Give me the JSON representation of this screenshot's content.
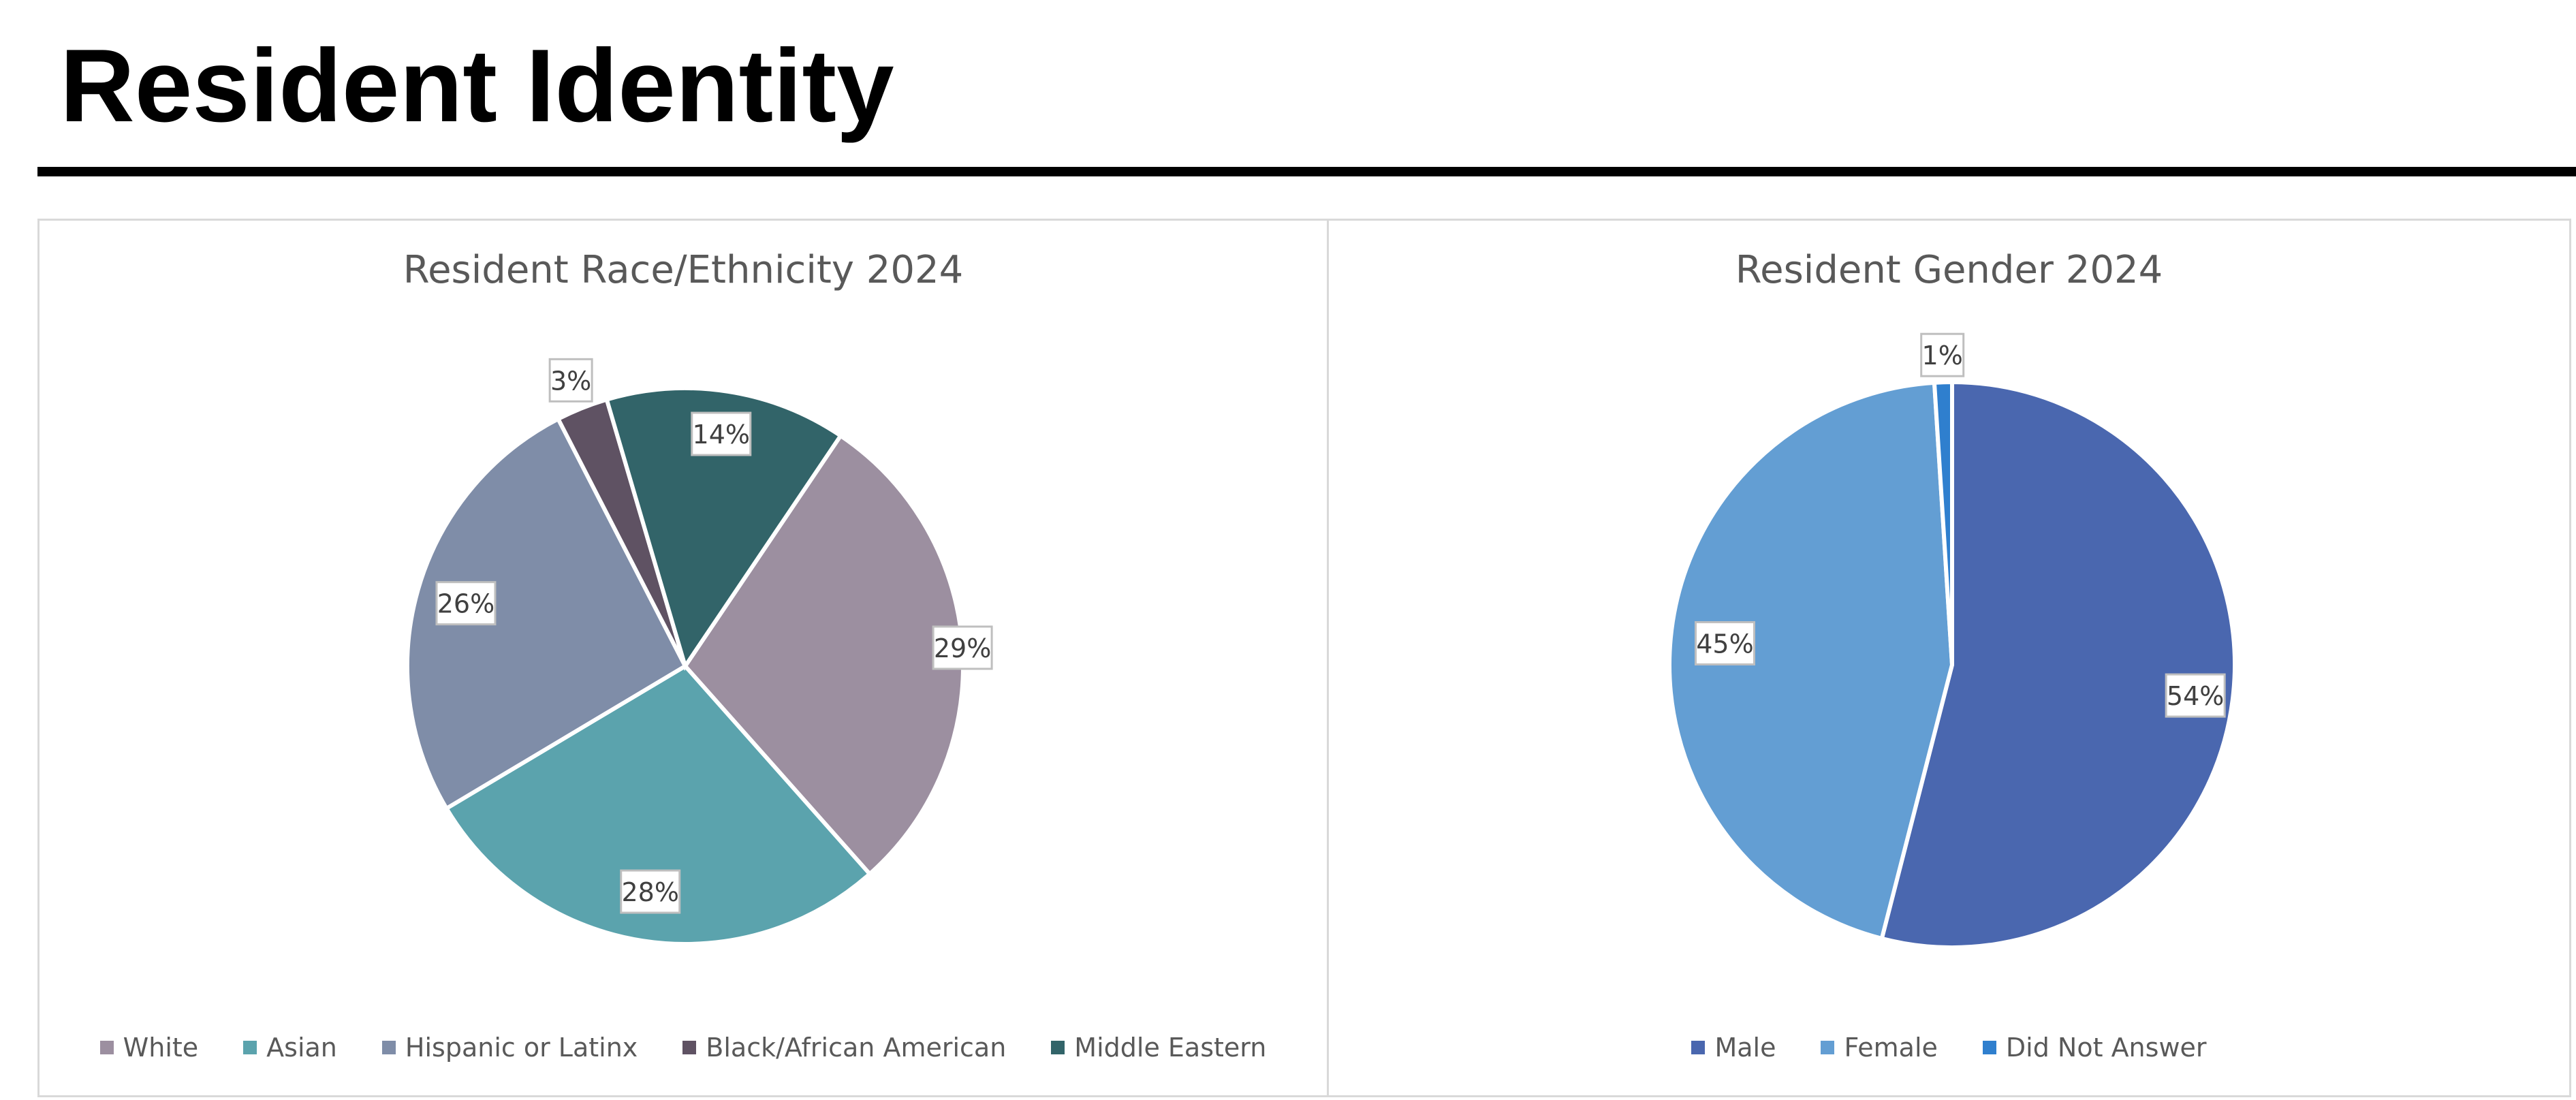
{
  "page": {
    "title": "Resident Identity"
  },
  "chart_data": [
    {
      "type": "pie",
      "title": "Resident Race/Ethnicity 2024",
      "legend_position": "bottom",
      "data_labels": "percent",
      "slices": [
        {
          "label": "White",
          "value": 29,
          "display": "29%",
          "color": "#9C8FA0"
        },
        {
          "label": "Asian",
          "value": 28,
          "display": "28%",
          "color": "#5BA3AD"
        },
        {
          "label": "Hispanic or Latinx",
          "value": 26,
          "display": "26%",
          "color": "#7F8DA8"
        },
        {
          "label": "Black/African American",
          "value": 3,
          "display": "3%",
          "color": "#5F5263"
        },
        {
          "label": "Middle Eastern",
          "value": 14,
          "display": "14%",
          "color": "#326469"
        }
      ]
    },
    {
      "type": "pie",
      "title": "Resident Gender 2024",
      "legend_position": "bottom",
      "data_labels": "percent",
      "slices": [
        {
          "label": "Male",
          "value": 54,
          "display": "54%",
          "color": "#4A67AF"
        },
        {
          "label": "Female",
          "value": 45,
          "display": "45%",
          "color": "#639ED3"
        },
        {
          "label": "Did Not Answer",
          "value": 1,
          "display": "1%",
          "color": "#2F7FCE"
        }
      ]
    }
  ]
}
